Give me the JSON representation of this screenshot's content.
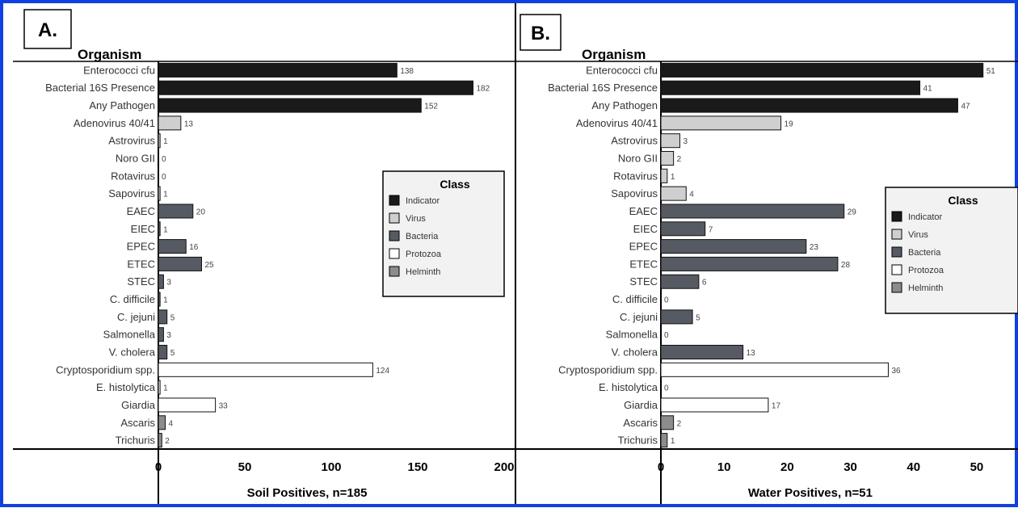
{
  "colors": {
    "Indicator": "#1a1a1a",
    "Virus": "#cfcfcf",
    "Bacteria": "#555a63",
    "Protozoa": "#ffffff",
    "Helminth": "#8c8c8c",
    "frame": "#1040e0"
  },
  "chart_data": [
    {
      "type": "bar",
      "orientation": "horizontal",
      "panel_label": "A.",
      "ylabel": "Organism",
      "xlabel": "Soil Positives, n=185",
      "xlim": [
        0,
        200
      ],
      "xticks": [
        0,
        50,
        100,
        150,
        200
      ],
      "legend_title": "Class",
      "legend": [
        "Indicator",
        "Virus",
        "Bacteria",
        "Protozoa",
        "Helminth"
      ],
      "legend_position": "right-middle",
      "categories": [
        "Enterococci cfu",
        "Bacterial 16S Presence",
        "Any Pathogen",
        "Adenovirus 40/41",
        "Astrovirus",
        "Noro GII",
        "Rotavirus",
        "Sapovirus",
        "EAEC",
        "EIEC",
        "EPEC",
        "ETEC",
        "STEC",
        "C. difficile",
        "C. jejuni",
        "Salmonella",
        "V. cholera",
        "Cryptosporidium spp.",
        "E. histolytica",
        "Giardia",
        "Ascaris",
        "Trichuris"
      ],
      "classes": [
        "Indicator",
        "Indicator",
        "Indicator",
        "Virus",
        "Virus",
        "Virus",
        "Virus",
        "Virus",
        "Bacteria",
        "Bacteria",
        "Bacteria",
        "Bacteria",
        "Bacteria",
        "Bacteria",
        "Bacteria",
        "Bacteria",
        "Bacteria",
        "Protozoa",
        "Protozoa",
        "Protozoa",
        "Helminth",
        "Helminth"
      ],
      "values": [
        138,
        182,
        152,
        13,
        1,
        0,
        0,
        1,
        20,
        1,
        16,
        25,
        3,
        1,
        5,
        3,
        5,
        124,
        1,
        33,
        4,
        2
      ]
    },
    {
      "type": "bar",
      "orientation": "horizontal",
      "panel_label": "B.",
      "ylabel": "Organism",
      "xlabel": "Water Positives, n=51",
      "xlim": [
        0,
        55
      ],
      "xticks": [
        0,
        10,
        20,
        30,
        40,
        50
      ],
      "legend_title": "Class",
      "legend": [
        "Indicator",
        "Virus",
        "Bacteria",
        "Protozoa",
        "Helminth"
      ],
      "legend_position": "right-middle",
      "categories": [
        "Enterococci cfu",
        "Bacterial 16S Presence",
        "Any Pathogen",
        "Adenovirus 40/41",
        "Astrovirus",
        "Noro GII",
        "Rotavirus",
        "Sapovirus",
        "EAEC",
        "EIEC",
        "EPEC",
        "ETEC",
        "STEC",
        "C. difficile",
        "C. jejuni",
        "Salmonella",
        "V. cholera",
        "Cryptosporidium spp.",
        "E. histolytica",
        "Giardia",
        "Ascaris",
        "Trichuris"
      ],
      "classes": [
        "Indicator",
        "Indicator",
        "Indicator",
        "Virus",
        "Virus",
        "Virus",
        "Virus",
        "Virus",
        "Bacteria",
        "Bacteria",
        "Bacteria",
        "Bacteria",
        "Bacteria",
        "Bacteria",
        "Bacteria",
        "Bacteria",
        "Bacteria",
        "Protozoa",
        "Protozoa",
        "Protozoa",
        "Helminth",
        "Helminth"
      ],
      "values": [
        51,
        41,
        47,
        19,
        3,
        2,
        1,
        4,
        29,
        7,
        23,
        28,
        6,
        0,
        5,
        0,
        13,
        36,
        0,
        17,
        2,
        1
      ]
    }
  ]
}
